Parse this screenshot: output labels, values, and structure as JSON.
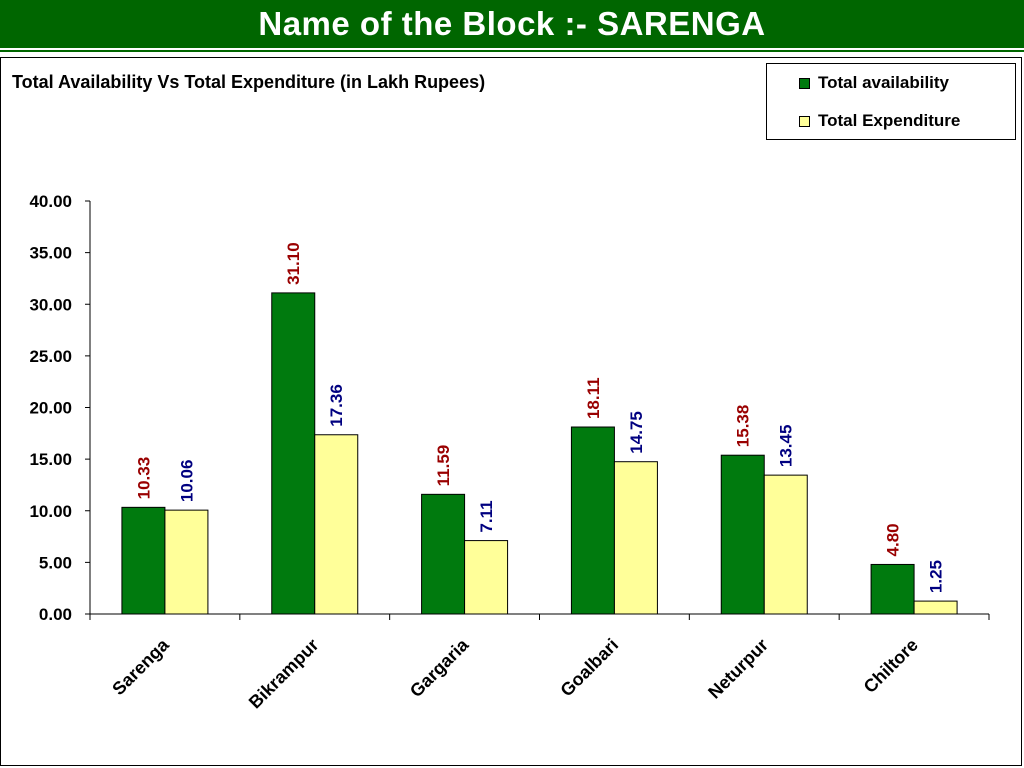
{
  "page": {
    "title": "Name of the Block :- SARENGA"
  },
  "colors": {
    "header_bg": "#006600",
    "availability": "#007A0E",
    "expenditure": "#FFFF99",
    "availability_label": "#990000",
    "expenditure_label": "#000080"
  },
  "chart_data": {
    "type": "bar",
    "title": "Total Availability Vs Total Expenditure (in Lakh Rupees)",
    "categories": [
      "Sarenga",
      "Bikrampur",
      "Gargaria",
      "Goalbari",
      "Neturpur",
      "Chiltore"
    ],
    "series": [
      {
        "name": "Total availability",
        "values": [
          10.33,
          31.1,
          11.59,
          18.11,
          15.38,
          4.8
        ]
      },
      {
        "name": "Total Expenditure",
        "values": [
          10.06,
          17.36,
          7.11,
          14.75,
          13.45,
          1.25
        ]
      }
    ],
    "y_ticks": [
      "0.00",
      "5.00",
      "10.00",
      "15.00",
      "20.00",
      "25.00",
      "30.00",
      "35.00",
      "40.00"
    ],
    "ylim": [
      0,
      40
    ],
    "legend_position": "top-right",
    "grid": false
  }
}
